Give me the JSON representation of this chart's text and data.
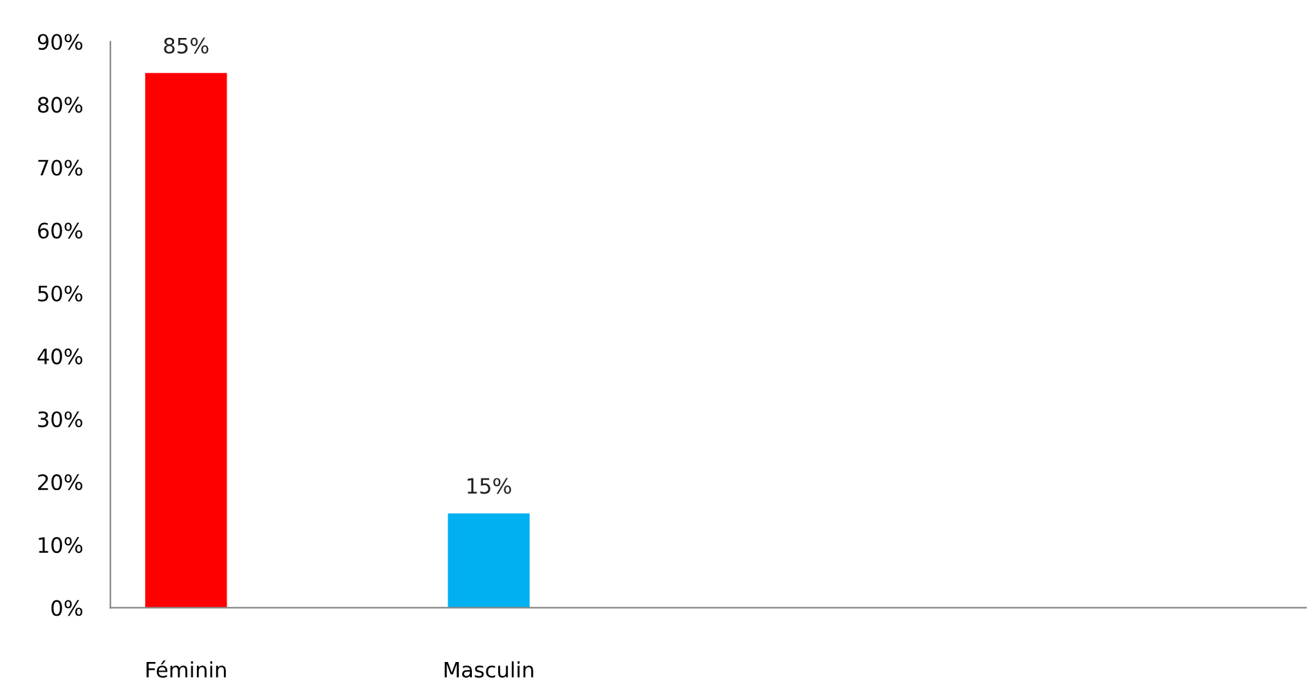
{
  "chart_data": {
    "type": "bar",
    "categories": [
      "Féminin",
      "Masculin"
    ],
    "values": [
      85,
      15
    ],
    "colors": [
      "#ff0000",
      "#00b0f0"
    ],
    "value_labels": [
      "85%",
      "15%"
    ],
    "ylim": [
      0,
      90
    ],
    "yticks": [
      {
        "value": 0,
        "label": "0%"
      },
      {
        "value": 10,
        "label": "10%"
      },
      {
        "value": 20,
        "label": "20%"
      },
      {
        "value": 30,
        "label": "30%"
      },
      {
        "value": 40,
        "label": "40%"
      },
      {
        "value": 50,
        "label": "50%"
      },
      {
        "value": 60,
        "label": "60%"
      },
      {
        "value": 70,
        "label": "70%"
      },
      {
        "value": 80,
        "label": "80%"
      },
      {
        "value": 90,
        "label": "90%"
      }
    ],
    "grid": false,
    "legend": false
  }
}
